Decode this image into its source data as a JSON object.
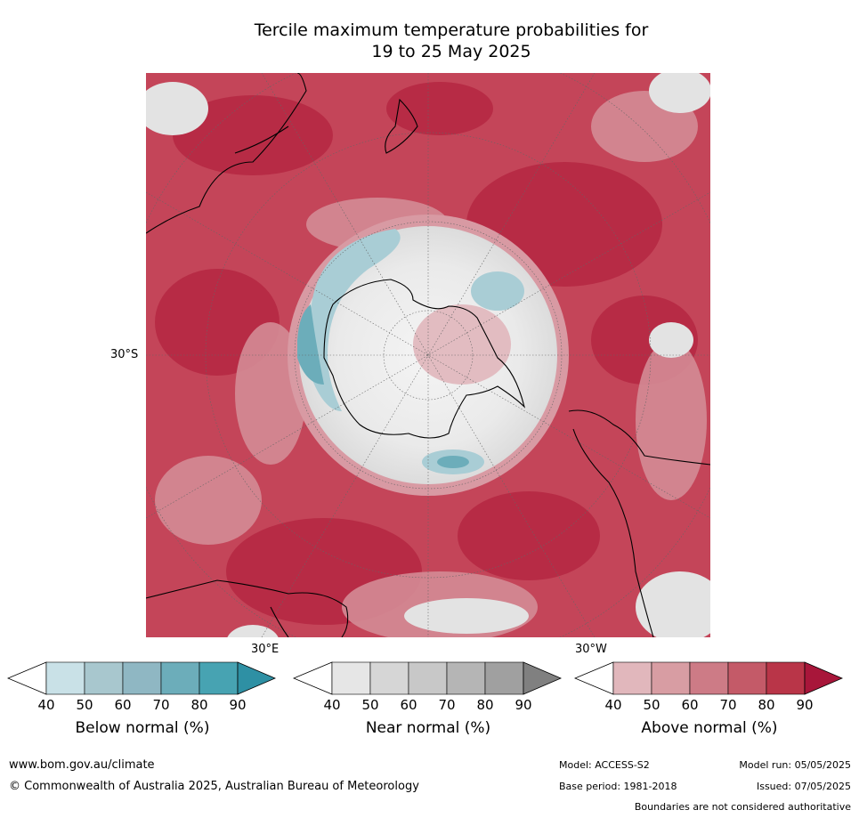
{
  "title": {
    "line1": "Tercile maximum temperature probabilities for",
    "line2": "19 to 25 May 2025"
  },
  "map_labels": {
    "lat_30s": "30°S",
    "lon_30e": "30°E",
    "lon_30w": "30°W"
  },
  "legends": [
    {
      "title": "Below normal (%)",
      "ticks": [
        "40",
        "50",
        "60",
        "70",
        "80",
        "90"
      ],
      "colors": [
        "#ffffff",
        "#c9e1e7",
        "#a8c7ce",
        "#8fb7c3",
        "#6cadba",
        "#47a3b2",
        "#2e90a4"
      ]
    },
    {
      "title": "Near normal (%)",
      "ticks": [
        "40",
        "50",
        "60",
        "70",
        "80",
        "90"
      ],
      "colors": [
        "#ffffff",
        "#e6e6e6",
        "#d6d6d6",
        "#c8c8c8",
        "#b5b5b5",
        "#a0a0a0",
        "#808080"
      ]
    },
    {
      "title": "Above normal (%)",
      "ticks": [
        "40",
        "50",
        "60",
        "70",
        "80",
        "90"
      ],
      "colors": [
        "#ffffff",
        "#e1b7bc",
        "#d89da3",
        "#cd7b86",
        "#c45a68",
        "#b93548",
        "#a8163a"
      ]
    }
  ],
  "footer": {
    "website": "www.bom.gov.au/climate",
    "copyright": "© Commonwealth of Australia 2025, Australian Bureau of Meteorology",
    "model": "Model: ACCESS-S2",
    "model_run": "Model run: 05/05/2025",
    "base_period": "Base period: 1981-2018",
    "issued": "Issued: 07/05/2025",
    "boundaries": "Boundaries are not considered authoritative"
  }
}
